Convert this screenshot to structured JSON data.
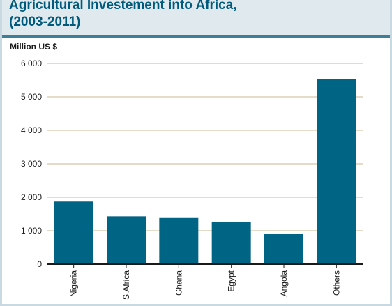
{
  "chart_data": {
    "type": "bar",
    "title_lines": [
      "Agricultural Investement into Africa,",
      "(2003-2011)"
    ],
    "ylabel": "Million US $",
    "xlabel": "",
    "categories": [
      "Nigeria",
      "S.Africa",
      "Ghana",
      "Egypt",
      "Angola",
      "Others"
    ],
    "values": [
      1870,
      1430,
      1380,
      1260,
      900,
      5530
    ],
    "yticks": [
      0,
      1000,
      2000,
      3000,
      4000,
      5000,
      6000
    ],
    "ytick_labels": [
      "0",
      "1 000",
      "2 000",
      "3 000",
      "4 000",
      "5 000",
      "6 000"
    ],
    "ylim": [
      0,
      6000
    ],
    "grid": true,
    "colors": {
      "bar": "#006585",
      "grid": "#c8b893",
      "axis": "#1a1a1a",
      "title": "#005a7c"
    }
  }
}
